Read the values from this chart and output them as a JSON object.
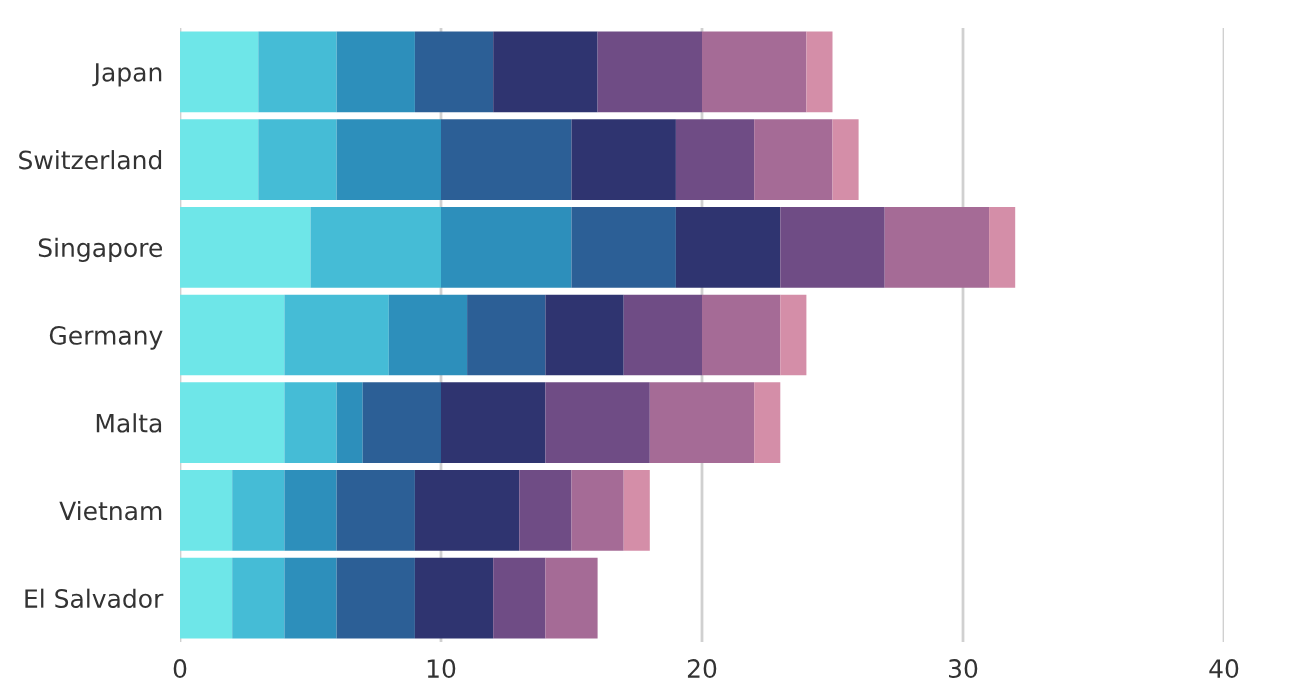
{
  "chart_data": {
    "type": "bar",
    "orientation": "horizontal",
    "stacked": true,
    "categories": [
      "Japan",
      "Switzerland",
      "Singapore",
      "Germany",
      "Malta",
      "Vietnam",
      "El Salvador"
    ],
    "series": [
      {
        "color": "#6ee6e8",
        "values": [
          3,
          3,
          5,
          4,
          4,
          2,
          2
        ]
      },
      {
        "color": "#45bcd6",
        "values": [
          3,
          3,
          5,
          4,
          2,
          2,
          2
        ]
      },
      {
        "color": "#2d8fbb",
        "values": [
          3,
          4,
          5,
          3,
          1,
          2,
          2
        ]
      },
      {
        "color": "#2c5f96",
        "values": [
          3,
          5,
          4,
          3,
          3,
          3,
          3
        ]
      },
      {
        "color": "#2f3470",
        "values": [
          4,
          4,
          4,
          3,
          4,
          4,
          3
        ]
      },
      {
        "color": "#6f4c85",
        "values": [
          4,
          3,
          4,
          3,
          4,
          2,
          2
        ]
      },
      {
        "color": "#a56b96",
        "values": [
          4,
          3,
          4,
          3,
          4,
          2,
          2
        ]
      },
      {
        "color": "#d48ea8",
        "values": [
          1,
          1,
          1,
          1,
          1,
          1,
          null
        ]
      }
    ],
    "xlim": [
      0,
      40
    ],
    "xticks": [
      0,
      10,
      20,
      30,
      40
    ],
    "grid": "x",
    "legend": false
  }
}
